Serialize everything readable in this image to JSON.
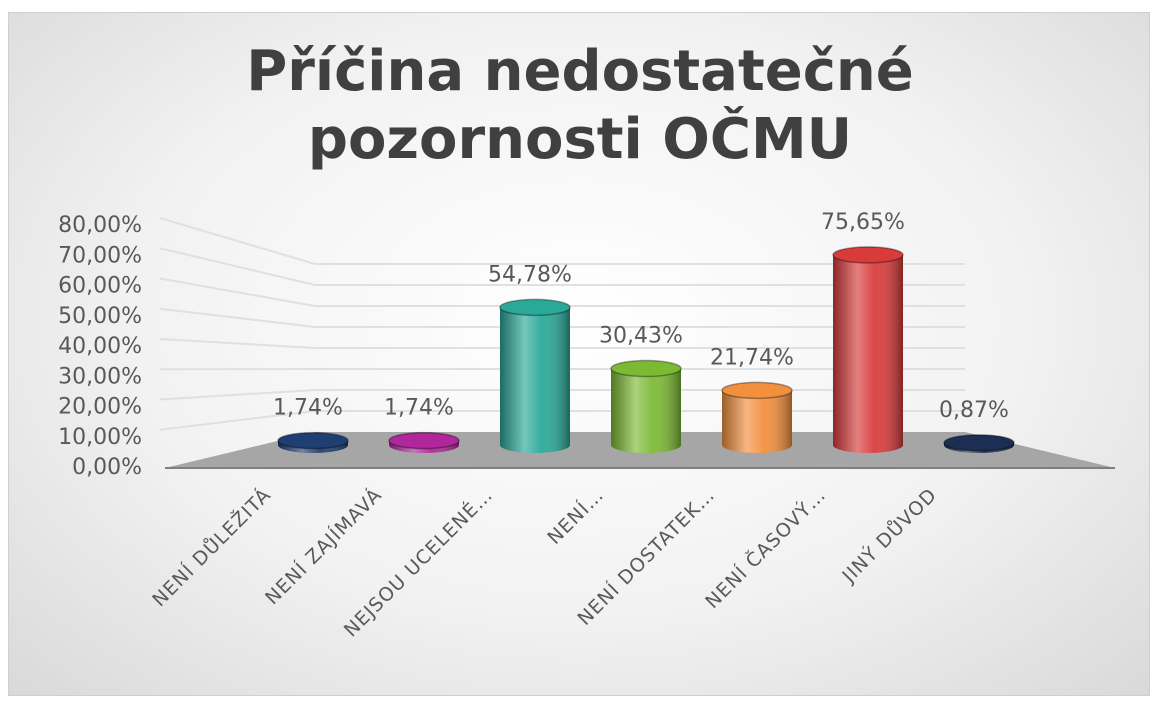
{
  "chart_data": {
    "type": "bar",
    "title": "Příčina nedostatečné pozornosti OČMU",
    "categories": [
      "NENÍ DŮLEŽITÁ",
      "NENÍ ZAJÍMAVÁ",
      "NEJSOU UCELENÉ…",
      "NENÍ…",
      "NENÍ DOSTATEK…",
      "NENÍ ČASOVÝ…",
      "JINÝ DŮVOD"
    ],
    "values": [
      1.74,
      1.74,
      54.78,
      30.43,
      21.74,
      75.65,
      0.87
    ],
    "value_labels": [
      "1,74%",
      "1,74%",
      "54,78%",
      "30,43%",
      "21,74%",
      "75,65%",
      "0,87%"
    ],
    "colors": [
      "#1f3f73",
      "#b0279c",
      "#2aa898",
      "#7cba34",
      "#f2903e",
      "#d93b3b",
      "#1c2f52"
    ],
    "ylim": [
      0,
      80
    ],
    "yticks": [
      {
        "value": 0,
        "label": "0,00%"
      },
      {
        "value": 10,
        "label": "10,00%"
      },
      {
        "value": 20,
        "label": "20,00%"
      },
      {
        "value": 30,
        "label": "30,00%"
      },
      {
        "value": 40,
        "label": "40,00%"
      },
      {
        "value": 50,
        "label": "50,00%"
      },
      {
        "value": 60,
        "label": "60,00%"
      },
      {
        "value": 70,
        "label": "70,00%"
      },
      {
        "value": 80,
        "label": "80,00%"
      }
    ],
    "grid": true
  }
}
